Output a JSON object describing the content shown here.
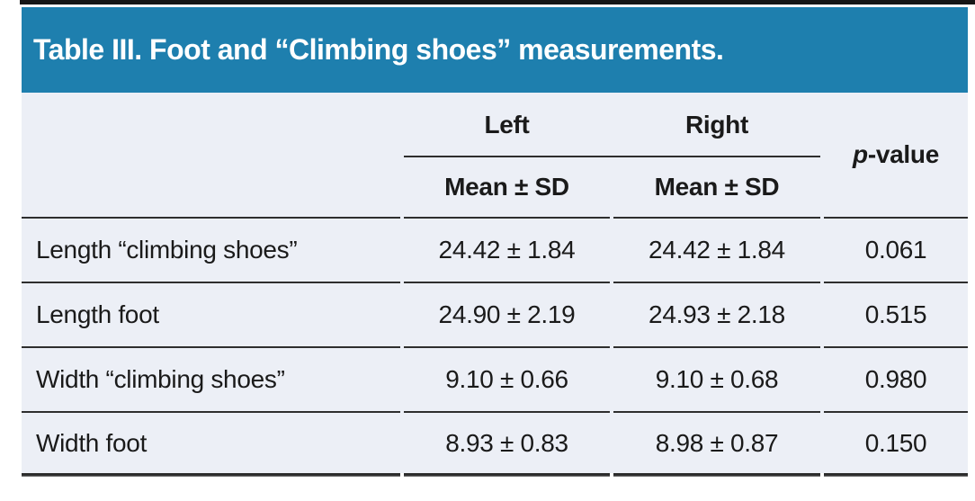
{
  "title": "Table III. Foot and “Climbing shoes” measurements.",
  "header": {
    "left": "Left",
    "right": "Right",
    "subheader_left": "Mean ± SD",
    "subheader_right": "Mean ± SD",
    "pvalue_italic": "p",
    "pvalue_rest": "-value"
  },
  "rows": [
    {
      "label": "Length “climbing shoes”",
      "left": "24.42 ± 1.84",
      "right": "24.42 ± 1.84",
      "p": "0.061"
    },
    {
      "label": "Length foot",
      "left": "24.90 ± 2.19",
      "right": "24.93 ± 2.18",
      "p": "0.515"
    },
    {
      "label": "Width “climbing shoes”",
      "left": "9.10 ± 0.66",
      "right": "9.10 ± 0.68",
      "p": "0.980"
    },
    {
      "label": "Width foot",
      "left": "8.93 ± 0.83",
      "right": "8.98 ± 0.87",
      "p": "0.150"
    }
  ],
  "colors": {
    "header_bg": "#1E7FAE",
    "body_bg": "#ECEFF6",
    "rule": "#2E2E2E",
    "text": "#1A1A1A",
    "title_text": "#FFFFFF"
  }
}
